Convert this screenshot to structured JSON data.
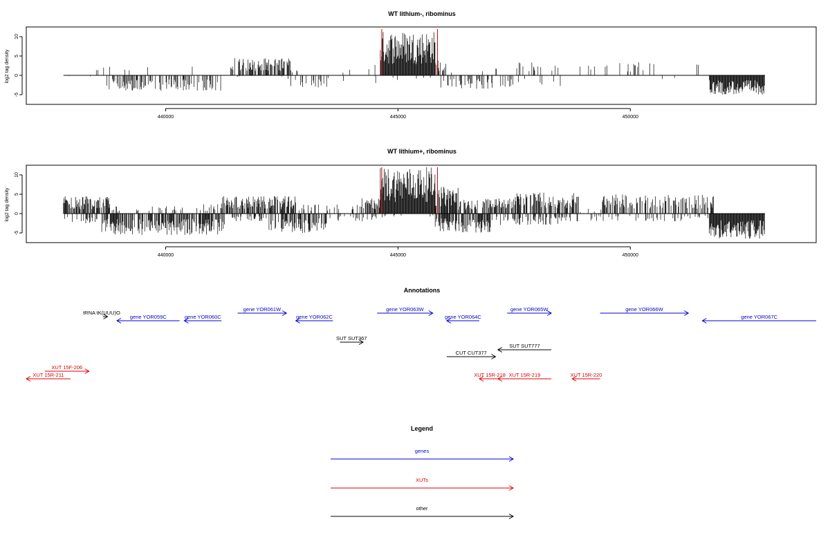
{
  "chart_data": [
    {
      "type": "bar",
      "title": "WT lithium-, ribominus",
      "xlabel": "",
      "ylabel": "log2 tag density",
      "xlim": [
        437000,
        454000
      ],
      "ylim": [
        -7.5,
        12.5
      ],
      "yticks": [
        -5,
        0,
        5,
        10
      ],
      "xticks": [
        440000,
        445000,
        450000
      ],
      "xtick_labels": [
        "440000",
        "445000",
        "450000"
      ],
      "data_range": [
        437800,
        452900
      ],
      "markers_x": [
        444650,
        445850
      ],
      "marker_color": "#dd0000",
      "bar_color": "#000000",
      "forward_profile": [
        {
          "from": 437800,
          "to": 441400,
          "max": 3.0,
          "density": 0.03
        },
        {
          "from": 441400,
          "to": 442700,
          "max": 4.5,
          "density": 0.6
        },
        {
          "from": 442700,
          "to": 444000,
          "max": 1.5,
          "density": 0.02
        },
        {
          "from": 444000,
          "to": 444620,
          "max": 3.5,
          "density": 0.08
        },
        {
          "from": 444620,
          "to": 445800,
          "max": 11.5,
          "density": 1.0
        },
        {
          "from": 445800,
          "to": 446050,
          "max": 4.0,
          "density": 0.5
        },
        {
          "from": 446050,
          "to": 447400,
          "max": 2.5,
          "density": 0.04
        },
        {
          "from": 447400,
          "to": 448500,
          "max": 3.5,
          "density": 0.18
        },
        {
          "from": 448500,
          "to": 451500,
          "max": 3.5,
          "density": 0.05
        }
      ],
      "reverse_profile": [
        {
          "from": 437800,
          "to": 438700,
          "max": 0.5,
          "density": 0.02
        },
        {
          "from": 438700,
          "to": 441200,
          "max": 4.0,
          "density": 0.35
        },
        {
          "from": 441200,
          "to": 442600,
          "max": 0.5,
          "density": 0.02
        },
        {
          "from": 442600,
          "to": 443500,
          "max": 3.5,
          "density": 0.2
        },
        {
          "from": 443500,
          "to": 445900,
          "max": 2.0,
          "density": 0.03
        },
        {
          "from": 445900,
          "to": 447100,
          "max": 3.5,
          "density": 0.35
        },
        {
          "from": 447100,
          "to": 448600,
          "max": 3.0,
          "density": 0.12
        },
        {
          "from": 448600,
          "to": 451700,
          "max": 1.0,
          "density": 0.02
        },
        {
          "from": 451700,
          "to": 452900,
          "max": 5.0,
          "density": 1.0
        }
      ]
    },
    {
      "type": "bar",
      "title": "WT lithium+, ribominus",
      "xlabel": "",
      "ylabel": "log2 tag density",
      "xlim": [
        437000,
        454000
      ],
      "ylim": [
        -7.5,
        12.5
      ],
      "yticks": [
        -5,
        0,
        5,
        10
      ],
      "xticks": [
        440000,
        445000,
        450000
      ],
      "xtick_labels": [
        "440000",
        "445000",
        "450000"
      ],
      "data_range": [
        437800,
        452900
      ],
      "markers_x": [
        444650,
        445850
      ],
      "marker_color": "#dd0000",
      "bar_color": "#000000",
      "forward_profile": [
        {
          "from": 437800,
          "to": 438800,
          "max": 4.5,
          "density": 0.7
        },
        {
          "from": 438800,
          "to": 440700,
          "max": 2.0,
          "density": 0.15
        },
        {
          "from": 440700,
          "to": 441200,
          "max": 2.5,
          "density": 0.3
        },
        {
          "from": 441200,
          "to": 442800,
          "max": 4.5,
          "density": 0.7
        },
        {
          "from": 442800,
          "to": 444200,
          "max": 2.5,
          "density": 0.2
        },
        {
          "from": 444200,
          "to": 444620,
          "max": 4.0,
          "density": 0.6
        },
        {
          "from": 444620,
          "to": 445800,
          "max": 12.0,
          "density": 1.0
        },
        {
          "from": 445800,
          "to": 446300,
          "max": 7.0,
          "density": 0.9
        },
        {
          "from": 446300,
          "to": 447500,
          "max": 4.0,
          "density": 0.6
        },
        {
          "from": 447500,
          "to": 448900,
          "max": 5.5,
          "density": 0.6
        },
        {
          "from": 448900,
          "to": 449400,
          "max": 1.5,
          "density": 0.05
        },
        {
          "from": 449400,
          "to": 451800,
          "max": 5.0,
          "density": 0.5
        }
      ],
      "reverse_profile": [
        {
          "from": 437800,
          "to": 438600,
          "max": 2.5,
          "density": 0.3
        },
        {
          "from": 438600,
          "to": 441300,
          "max": 5.5,
          "density": 0.7
        },
        {
          "from": 441300,
          "to": 442200,
          "max": 2.0,
          "density": 0.25
        },
        {
          "from": 442200,
          "to": 443500,
          "max": 5.0,
          "density": 0.6
        },
        {
          "from": 443500,
          "to": 444600,
          "max": 2.0,
          "density": 0.2
        },
        {
          "from": 444600,
          "to": 445800,
          "max": 1.0,
          "density": 0.05
        },
        {
          "from": 445800,
          "to": 447000,
          "max": 5.0,
          "density": 0.8
        },
        {
          "from": 447000,
          "to": 448600,
          "max": 3.0,
          "density": 0.35
        },
        {
          "from": 448600,
          "to": 451700,
          "max": 2.0,
          "density": 0.15
        },
        {
          "from": 451700,
          "to": 452900,
          "max": 6.5,
          "density": 1.0
        }
      ]
    }
  ],
  "annotations": {
    "title": "Annotations",
    "colors": {
      "genes": "#0000cc",
      "XUTs": "#dd0000",
      "other": "#000000"
    },
    "items": [
      {
        "label": "tRNA tK(UUU)O",
        "kind": "other",
        "dir": "+",
        "start": 438650,
        "end": 438750,
        "track": 1,
        "label_pos": "left"
      },
      {
        "label": "gene YOR059C",
        "kind": "genes",
        "dir": "-",
        "start": 438950,
        "end": 440300,
        "track": 2
      },
      {
        "label": "gene YOR060C",
        "kind": "genes",
        "dir": "-",
        "start": 440400,
        "end": 441200,
        "track": 2
      },
      {
        "label": "gene YOR061W",
        "kind": "genes",
        "dir": "+",
        "start": 441550,
        "end": 442600,
        "track": 0
      },
      {
        "label": "gene YOR062C",
        "kind": "genes",
        "dir": "-",
        "start": 442800,
        "end": 443600,
        "track": 2
      },
      {
        "label": "gene YOR063W",
        "kind": "genes",
        "dir": "+",
        "start": 444550,
        "end": 445750,
        "track": 0
      },
      {
        "label": "gene YOR064C",
        "kind": "genes",
        "dir": "-",
        "start": 446050,
        "end": 446750,
        "track": 2
      },
      {
        "label": "gene YOR065W",
        "kind": "genes",
        "dir": "+",
        "start": 447350,
        "end": 448300,
        "track": 0
      },
      {
        "label": "gene YOR066W",
        "kind": "genes",
        "dir": "+",
        "start": 449350,
        "end": 451250,
        "track": 0
      },
      {
        "label": "gene YOR067C",
        "kind": "genes",
        "dir": "-",
        "start": 451550,
        "end": 454000,
        "track": 2
      },
      {
        "label": "SUT SUT367",
        "kind": "other",
        "dir": "+",
        "start": 443750,
        "end": 444250,
        "track": 4
      },
      {
        "label": "SUT SUT777",
        "kind": "other",
        "dir": "-",
        "start": 447150,
        "end": 448300,
        "track": 5
      },
      {
        "label": "CUT CUT377",
        "kind": "other",
        "dir": "+",
        "start": 446050,
        "end": 447100,
        "track": 6
      },
      {
        "label": "XUT 15F-206",
        "kind": "XUTs",
        "dir": "+",
        "start": 437400,
        "end": 438350,
        "track": 7
      },
      {
        "label": "XUT 15R-211",
        "kind": "XUTs",
        "dir": "-",
        "start": 437000,
        "end": 437950,
        "track": 8
      },
      {
        "label": "XUT 15R-218",
        "kind": "XUTs",
        "dir": "-",
        "start": 446750,
        "end": 447200,
        "track": 8
      },
      {
        "label": "XUT 15R-219",
        "kind": "XUTs",
        "dir": "-",
        "start": 447150,
        "end": 448300,
        "track": 8
      },
      {
        "label": "XUT 15R-220",
        "kind": "XUTs",
        "dir": "-",
        "start": 448750,
        "end": 449350,
        "track": 8
      }
    ]
  },
  "legend": {
    "title": "Legend",
    "items": [
      {
        "label": "genes",
        "color": "#0000cc"
      },
      {
        "label": "XUTs",
        "color": "#dd0000"
      },
      {
        "label": "other",
        "color": "#000000"
      }
    ]
  }
}
